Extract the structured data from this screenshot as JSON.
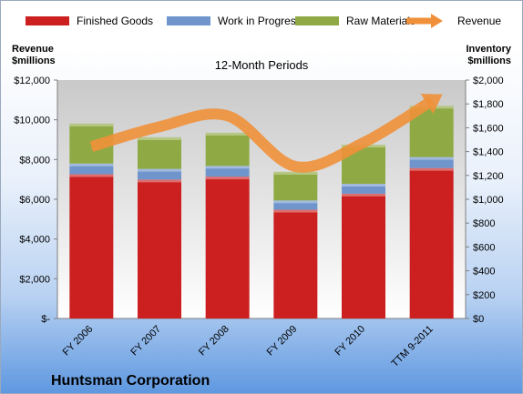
{
  "chart_data": {
    "type": "bar",
    "subtitle": "12-Month Periods",
    "company": "Huntsman Corporation",
    "categories": [
      "FY 2006",
      "FY 2007",
      "FY 2008",
      "FY 2009",
      "FY 2010",
      "TTM 9-2011"
    ],
    "left_axis": {
      "label_line1": "Revenue",
      "label_line2": "$millions",
      "ylim": [
        0,
        12000
      ],
      "ticks": [
        {
          "value": 0,
          "label": "$-"
        },
        {
          "value": 2000,
          "label": "$2,000"
        },
        {
          "value": 4000,
          "label": "$4,000"
        },
        {
          "value": 6000,
          "label": "$6,000"
        },
        {
          "value": 8000,
          "label": "$8,000"
        },
        {
          "value": 10000,
          "label": "$10,000"
        },
        {
          "value": 12000,
          "label": "$12,000"
        }
      ]
    },
    "right_axis": {
      "label_line1": "Inventory",
      "label_line2": "$millions",
      "ylim": [
        0,
        2000
      ],
      "ticks": [
        {
          "value": 0,
          "label": "$0"
        },
        {
          "value": 200,
          "label": "$200"
        },
        {
          "value": 400,
          "label": "$400"
        },
        {
          "value": 600,
          "label": "$600"
        },
        {
          "value": 800,
          "label": "$800"
        },
        {
          "value": 1000,
          "label": "$1,000"
        },
        {
          "value": 1200,
          "label": "$1,200"
        },
        {
          "value": 1400,
          "label": "$1,400"
        },
        {
          "value": 1600,
          "label": "$1,600"
        },
        {
          "value": 1800,
          "label": "$1,800"
        },
        {
          "value": 2000,
          "label": "$2,000"
        }
      ]
    },
    "stacked_series": [
      {
        "name": "Finished Goods",
        "color": "#cc2020",
        "axis": "right",
        "values": [
          1210,
          1165,
          1190,
          912,
          1047,
          1262
        ]
      },
      {
        "name": "Work in Progress",
        "color": "#6f95cc",
        "axis": "right",
        "values": [
          90,
          90,
          90,
          78,
          83,
          92
        ]
      },
      {
        "name": "Raw Materials",
        "color": "#8faa44",
        "axis": "right",
        "values": [
          335,
          265,
          278,
          240,
          328,
          430
        ]
      }
    ],
    "line_series": {
      "name": "Revenue",
      "color": "#f0903a",
      "axis": "left",
      "values": [
        8650,
        9650,
        10200,
        7650,
        8850,
        10950
      ]
    },
    "legend_position": "top",
    "grid": false
  }
}
